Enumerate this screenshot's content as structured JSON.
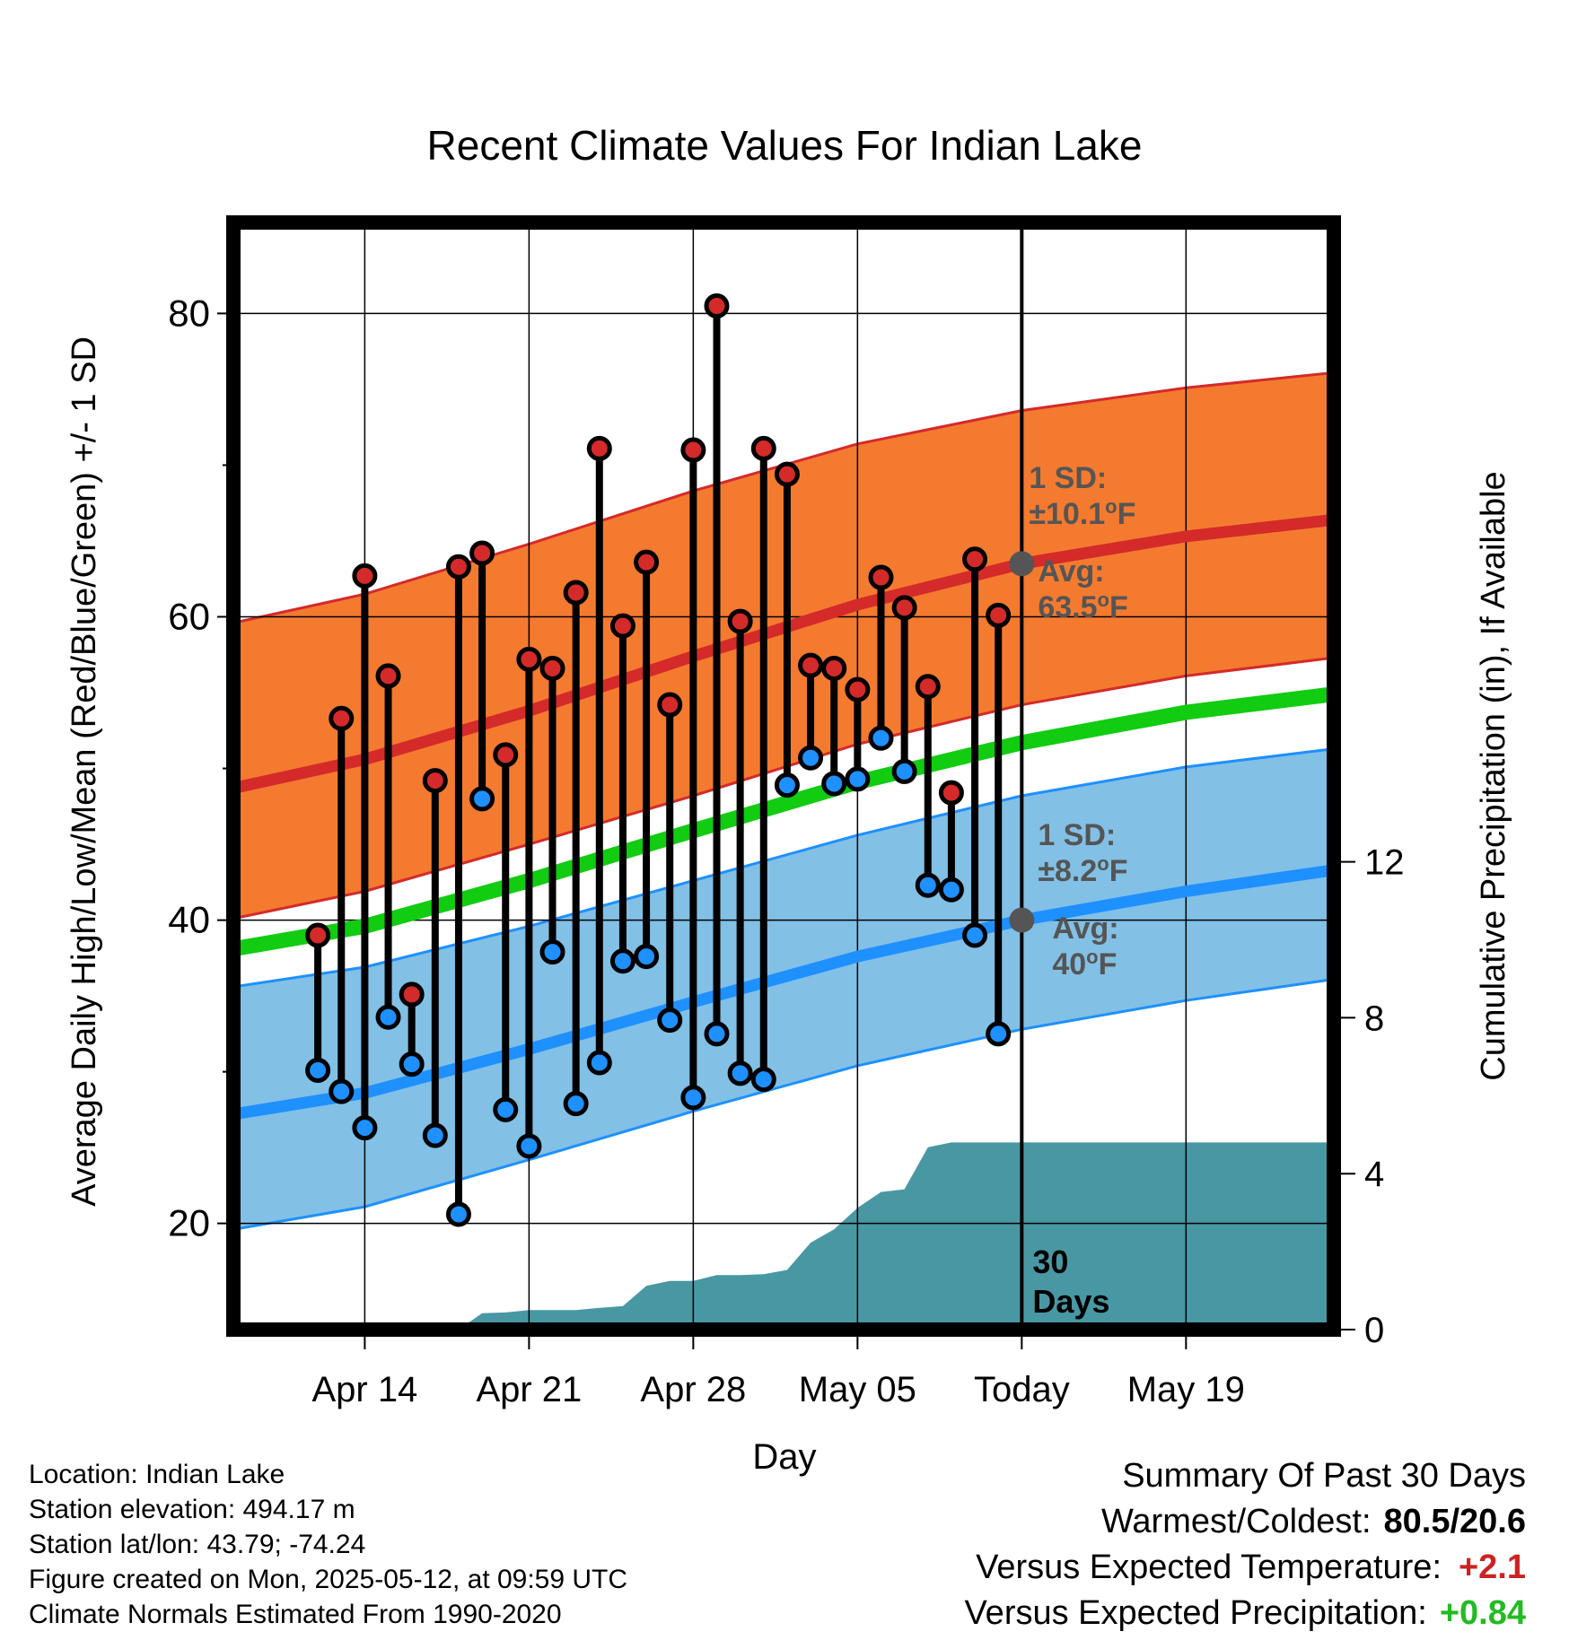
{
  "chart_data": {
    "type": "line",
    "title": "Recent Climate Values For Indian Lake",
    "xlabel": "Day",
    "ylabel": "Average Daily High/Low/Mean (Red/Blue/Green) +/- 1 SD",
    "y2label": "Cumulative Precipitation (in), If Available",
    "ylim": [
      13,
      86
    ],
    "y2lim": [
      0,
      28.4
    ],
    "xlim": [
      -5.6,
      41.3
    ],
    "grid": true,
    "x_tick_positions": [
      0,
      7,
      14,
      21,
      28,
      35
    ],
    "x_tick_labels": [
      "Apr 14",
      "Apr 21",
      "Apr 28",
      "May 05",
      "Today",
      "May 19"
    ],
    "y_ticks": [
      20,
      40,
      60,
      80
    ],
    "y_minor_ticks": [
      30,
      50,
      70
    ],
    "y2_ticks": [
      0,
      4,
      8,
      12
    ],
    "today_x": 28,
    "today_label": [
      "30",
      "Days"
    ],
    "colors": {
      "high_band": "#f47a2f",
      "high_band_edge": "#d42a2a",
      "high_mean": "#d42a2a",
      "low_band": "#82c0e6",
      "low_band_edge": "#1e90ff",
      "low_mean": "#1e90ff",
      "mean": "#11cc11",
      "precip": "#4898a4",
      "high_dot": "#d42a2a",
      "low_dot": "#1e90ff",
      "marker": "#555555"
    },
    "normals": {
      "x": [
        -5.6,
        0,
        7,
        14,
        21,
        28,
        35,
        41.3
      ],
      "high_mean": [
        48.7,
        50.6,
        53.8,
        57.4,
        60.8,
        63.5,
        65.3,
        66.4
      ],
      "high_upper": [
        59.6,
        61.5,
        64.8,
        68.3,
        71.4,
        73.6,
        75.1,
        76.1
      ],
      "high_lower": [
        40.1,
        41.9,
        45.0,
        48.2,
        51.6,
        54.2,
        56.1,
        57.3
      ],
      "low_mean": [
        27.2,
        28.6,
        31.5,
        34.6,
        37.6,
        40.0,
        41.9,
        43.3
      ],
      "low_upper": [
        35.6,
        36.9,
        39.6,
        42.6,
        45.6,
        48.2,
        50.1,
        51.3
      ],
      "low_lower": [
        19.6,
        21.1,
        24.2,
        27.4,
        30.4,
        32.8,
        34.7,
        36.1
      ],
      "mean": [
        38.1,
        39.6,
        42.6,
        45.9,
        49.1,
        51.7,
        53.7,
        54.9
      ]
    },
    "daily": {
      "x": [
        -2,
        -1,
        0,
        1,
        2,
        3,
        4,
        5,
        6,
        7,
        8,
        9,
        10,
        11,
        12,
        13,
        14,
        15,
        16,
        17,
        18,
        19,
        20,
        21,
        22,
        23,
        24,
        25,
        26,
        27
      ],
      "high": [
        39.0,
        53.3,
        62.7,
        56.1,
        35.1,
        49.2,
        63.3,
        64.2,
        50.9,
        57.2,
        56.6,
        61.6,
        71.1,
        59.4,
        63.6,
        54.2,
        71.0,
        80.5,
        59.7,
        71.1,
        69.4,
        56.8,
        56.6,
        55.2,
        62.6,
        60.6,
        55.4,
        48.4,
        63.8,
        60.1
      ],
      "low": [
        30.1,
        28.7,
        26.3,
        33.6,
        30.5,
        25.8,
        20.6,
        48.0,
        27.5,
        25.1,
        37.9,
        27.9,
        30.6,
        37.3,
        37.6,
        33.4,
        28.3,
        32.5,
        29.9,
        29.5,
        48.9,
        50.7,
        49.0,
        49.3,
        52.0,
        49.8,
        42.3,
        42.0,
        39.0,
        32.5
      ]
    },
    "precip": {
      "x": [
        -5.6,
        0,
        4,
        5,
        6,
        7,
        8,
        9,
        10,
        11,
        12,
        13,
        14,
        15,
        16,
        17,
        18,
        19,
        20,
        21,
        22,
        23,
        24,
        25,
        26,
        27,
        28,
        41.3
      ],
      "values": [
        0,
        0,
        0,
        0.42,
        0.44,
        0.5,
        0.5,
        0.5,
        0.56,
        0.6,
        1.12,
        1.25,
        1.25,
        1.4,
        1.4,
        1.42,
        1.53,
        2.23,
        2.57,
        3.12,
        3.53,
        3.6,
        4.68,
        4.8,
        4.8,
        4.8,
        4.8,
        4.8
      ]
    },
    "annotations": {
      "high_sd_label": "1 SD:",
      "high_sd_value": "±10.1°F",
      "high_avg_label": "Avg:",
      "high_avg_value": "63.5°F",
      "high_avg": 63.5,
      "low_sd_label": "1 SD:",
      "low_sd_value": "±8.2°F",
      "low_avg_label": "Avg:",
      "low_avg_value": "40°F",
      "low_avg": 40
    }
  },
  "info": {
    "location": "Location: Indian Lake",
    "elevation": "Station elevation: 494.17 m",
    "latlon": "Station lat/lon: 43.79; -74.24",
    "created": "Figure created on Mon, 2025-05-12, at 09:59 UTC",
    "normals": "Climate Normals Estimated From 1990-2020"
  },
  "summary": {
    "title": "Summary Of Past 30 Days",
    "warm_cold_label": "Warmest/Coldest:",
    "warm_cold_value": "80.5/20.6",
    "temp_label": "Versus Expected Temperature:",
    "temp_value": "+2.1",
    "temp_color": "#cc2222",
    "precip_label": "Versus Expected Precipitation:",
    "precip_value": "+0.84",
    "precip_color": "#22bb22"
  }
}
